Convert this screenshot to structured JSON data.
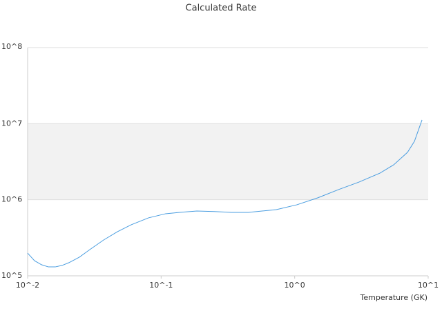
{
  "chart_data": {
    "type": "line",
    "title": "Calculated Rate",
    "x_label": "Temperature (GK)",
    "x": [
      0.01,
      0.01126,
      0.0127,
      0.0143,
      0.0161,
      0.0181,
      0.0204,
      0.0244,
      0.0292,
      0.0371,
      0.047,
      0.0597,
      0.0804,
      0.108,
      0.137,
      0.185,
      0.249,
      0.336,
      0.45,
      0.729,
      1.04,
      1.49,
      2.13,
      3.04,
      4.35,
      5.52,
      7.0,
      7.89,
      8.99
    ],
    "series": [
      {
        "name": "Rate",
        "color": "#4a9de0",
        "values": [
          199000,
          158000,
          140000,
          131000,
          131000,
          137000,
          149000,
          176000,
          221000,
          296000,
          380000,
          469000,
          578000,
          655000,
          682000,
          711000,
          700000,
          682000,
          682000,
          742000,
          859000,
          1060000,
          1360000,
          1710000,
          2240000,
          2880000,
          4200000,
          5860000,
          11200000
        ]
      }
    ],
    "xlim": [
      0.01,
      10
    ],
    "ylim": [
      100000,
      100000000
    ],
    "log_x": true,
    "log_y": true,
    "xticks": [
      {
        "value": 0.01,
        "label": "10^-2"
      },
      {
        "value": 0.1,
        "label": "10^-1"
      },
      {
        "value": 1,
        "label": "10^0"
      },
      {
        "value": 10,
        "label": "10^1"
      }
    ],
    "yticks": [
      {
        "value": 100000,
        "label": "10^5"
      },
      {
        "value": 1000000,
        "label": "10^6"
      },
      {
        "value": 10000000,
        "label": "10^7"
      },
      {
        "value": 100000000,
        "label": "10^8"
      }
    ],
    "grid": true
  }
}
